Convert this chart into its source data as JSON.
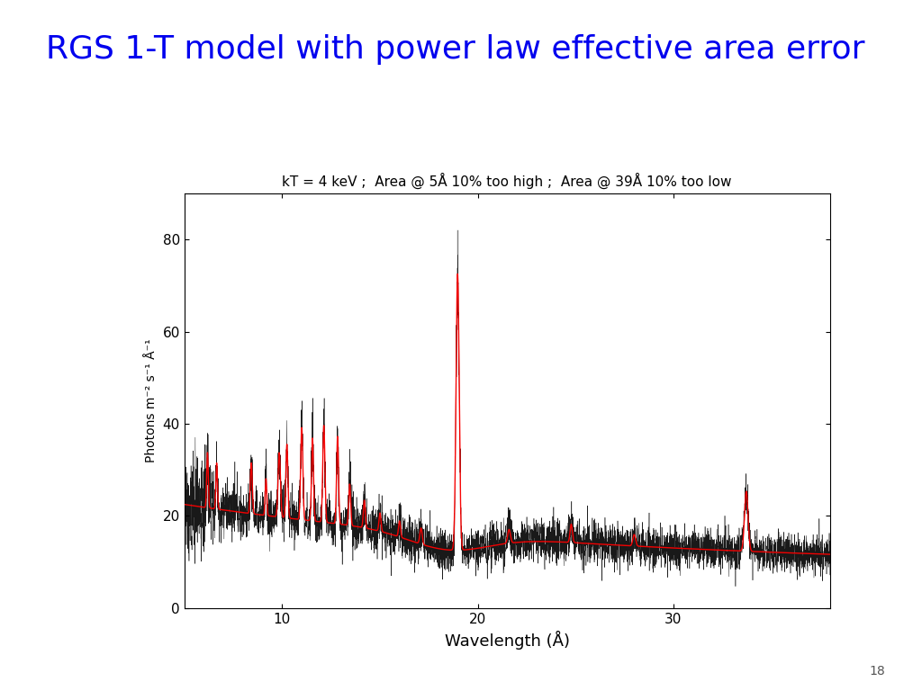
{
  "title": "RGS 1-T model with power law effective area error",
  "title_color": "#0000EE",
  "title_fontsize": 26,
  "subtitle": "kT = 4 keV ;  Area @ 5Å 10% too high ;  Area @ 39Å 10% too low",
  "subtitle_fontsize": 11,
  "xlabel": "Wavelength (Å)",
  "ylabel": "Photons m⁻² s⁻¹ Å⁻¹",
  "xlim": [
    5.0,
    38.0
  ],
  "ylim": [
    0,
    90
  ],
  "yticks": [
    0,
    20,
    40,
    60,
    80
  ],
  "xticks": [
    10,
    20,
    30
  ],
  "page_number": "18",
  "background_color": "#ffffff",
  "data_color": "#000000",
  "model_color": "#ff0000",
  "lines": [
    [
      6.18,
      12.0,
      0.04
    ],
    [
      6.65,
      10.0,
      0.04
    ],
    [
      8.42,
      11.0,
      0.05
    ],
    [
      9.17,
      8.0,
      0.04
    ],
    [
      9.85,
      14.0,
      0.06
    ],
    [
      10.24,
      16.0,
      0.05
    ],
    [
      11.0,
      20.0,
      0.055
    ],
    [
      11.55,
      18.0,
      0.05
    ],
    [
      12.13,
      21.0,
      0.055
    ],
    [
      12.83,
      19.0,
      0.05
    ],
    [
      13.45,
      9.0,
      0.05
    ],
    [
      14.2,
      6.0,
      0.05
    ],
    [
      15.0,
      4.0,
      0.05
    ],
    [
      16.0,
      3.5,
      0.05
    ],
    [
      17.1,
      3.5,
      0.06
    ],
    [
      18.97,
      60.0,
      0.08
    ],
    [
      21.6,
      3.0,
      0.07
    ],
    [
      24.78,
      4.0,
      0.06
    ],
    [
      28.0,
      2.5,
      0.07
    ],
    [
      33.73,
      13.0,
      0.09
    ]
  ],
  "cont_a": 14.0,
  "cont_b": 0.045,
  "cont_c": 8.5,
  "tick_x": 18.97
}
